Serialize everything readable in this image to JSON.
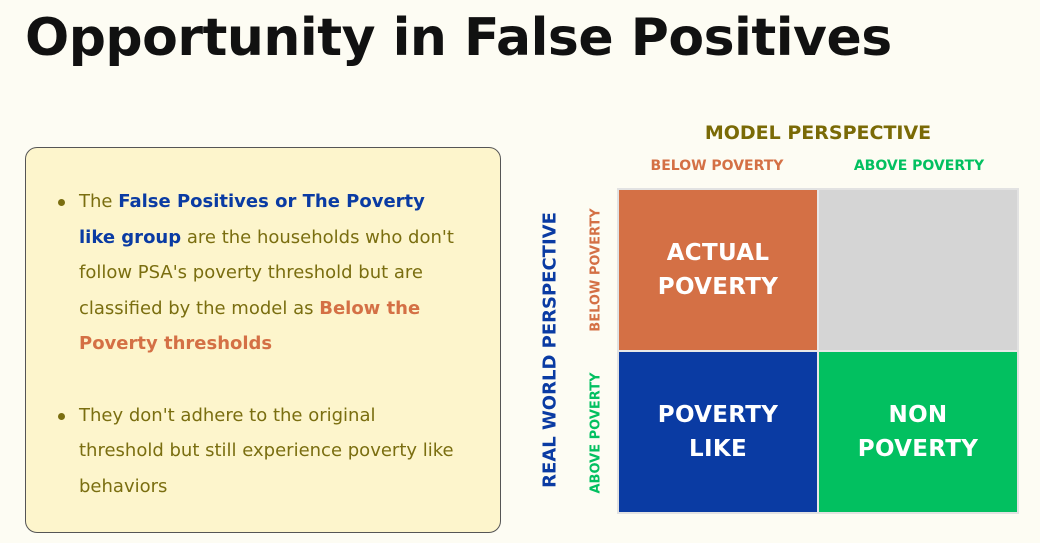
{
  "slide": {
    "title": "Opportunity in False Positives"
  },
  "card": {
    "bullet1": {
      "p1": "The ",
      "h1": "False Positives or The Poverty like group",
      "p2": " are the households who don't follow PSA's poverty threshold but are classified by the model as ",
      "h2": "Below the Poverty thresholds"
    },
    "bullet2": {
      "text": "They don't adhere to the original threshold but still experience poverty like behaviors"
    }
  },
  "matrix": {
    "model_title": "MODEL PERSPECTIVE",
    "real_world_title": "REAL WORLD PERSPECTIVE",
    "col_below": "BELOW POVERTY",
    "col_above": "ABOVE POVERTY",
    "row_below": "BELOW POVERTY",
    "row_above": "ABOVE POVERTY",
    "cells": {
      "actual": {
        "line1": "ACTUAL",
        "line2": "POVERTY"
      },
      "empty": {},
      "poverty_like": {
        "line1": "POVERTY",
        "line2": "LIKE"
      },
      "non_poverty": {
        "line1": "NON",
        "line2": "POVERTY"
      }
    },
    "colors": {
      "orange": "#d47045",
      "blue": "#0a3ba3",
      "green": "#02c060",
      "gray": "#d5d5d5",
      "olive": "#7a6a06"
    }
  }
}
